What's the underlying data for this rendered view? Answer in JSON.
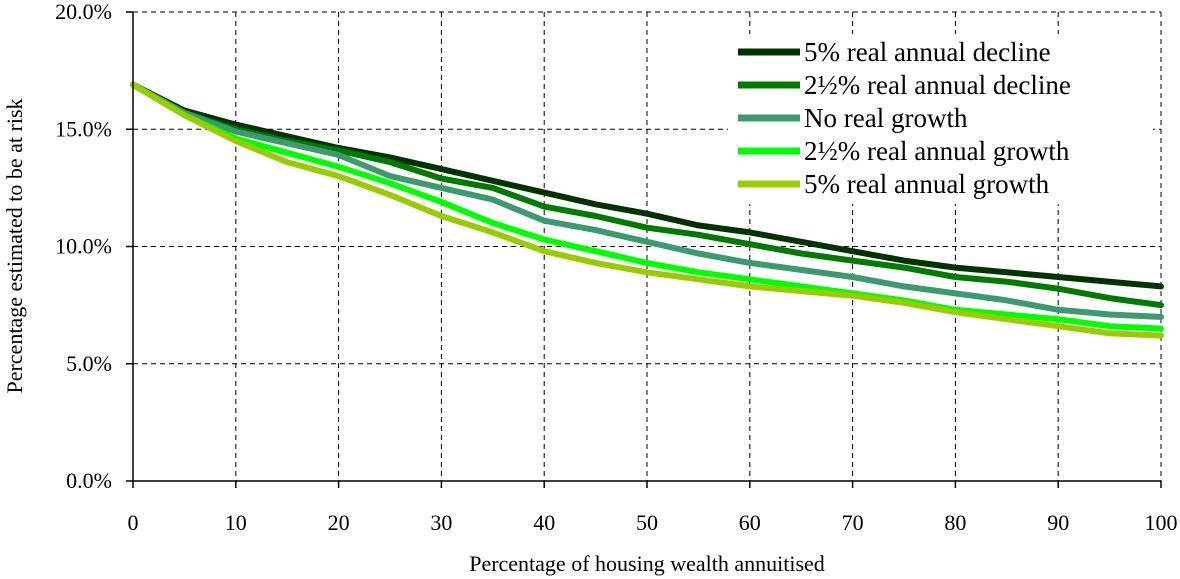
{
  "chart_data": {
    "type": "line",
    "xlabel": "Percentage of housing wealth annuitised",
    "ylabel": "Percentage estimated to be at risk",
    "xlim": [
      0,
      100
    ],
    "ylim": [
      0,
      20
    ],
    "x_ticks": [
      0,
      10,
      20,
      30,
      40,
      50,
      60,
      70,
      80,
      90,
      100
    ],
    "x_tick_labels": [
      "0",
      "10",
      "20",
      "30",
      "40",
      "50",
      "60",
      "70",
      "80",
      "90",
      "100"
    ],
    "y_ticks": [
      0,
      5,
      10,
      15,
      20
    ],
    "y_tick_labels": [
      "0.0%",
      "5.0%",
      "10.0%",
      "15.0%",
      "20.0%"
    ],
    "grid": true,
    "legend_position": "top-right",
    "x": [
      0,
      5,
      10,
      15,
      20,
      25,
      30,
      35,
      40,
      45,
      50,
      55,
      60,
      65,
      70,
      75,
      80,
      85,
      90,
      95,
      100
    ],
    "series": [
      {
        "name": "5% real annual decline",
        "color": "#003300",
        "values": [
          16.9,
          15.8,
          15.2,
          14.7,
          14.2,
          13.8,
          13.3,
          12.8,
          12.3,
          11.8,
          11.4,
          10.9,
          10.6,
          10.2,
          9.8,
          9.4,
          9.1,
          8.9,
          8.7,
          8.5,
          8.3
        ]
      },
      {
        "name": "2½% real annual decline",
        "color": "#007a00",
        "values": [
          16.9,
          15.7,
          15.0,
          14.5,
          14.1,
          13.6,
          12.9,
          12.5,
          11.7,
          11.3,
          10.8,
          10.5,
          10.1,
          9.7,
          9.4,
          9.1,
          8.7,
          8.5,
          8.2,
          7.8,
          7.5
        ]
      },
      {
        "name": "No real growth",
        "color": "#3c9b6e",
        "values": [
          16.9,
          15.7,
          14.9,
          14.4,
          13.9,
          13.0,
          12.5,
          12.0,
          11.1,
          10.7,
          10.2,
          9.7,
          9.3,
          9.0,
          8.7,
          8.3,
          8.0,
          7.7,
          7.3,
          7.1,
          7.0
        ]
      },
      {
        "name": "2½% real annual growth",
        "color": "#00ff00",
        "values": [
          16.9,
          15.6,
          14.6,
          14.0,
          13.4,
          12.7,
          11.9,
          11.0,
          10.3,
          9.8,
          9.3,
          8.9,
          8.6,
          8.3,
          8.0,
          7.7,
          7.3,
          7.1,
          6.9,
          6.6,
          6.5
        ]
      },
      {
        "name": "5% real annual growth",
        "color": "#99cc00",
        "values": [
          16.9,
          15.6,
          14.5,
          13.6,
          13.0,
          12.2,
          11.3,
          10.6,
          9.8,
          9.3,
          8.9,
          8.6,
          8.3,
          8.1,
          7.9,
          7.6,
          7.2,
          6.9,
          6.6,
          6.3,
          6.2
        ]
      }
    ]
  }
}
